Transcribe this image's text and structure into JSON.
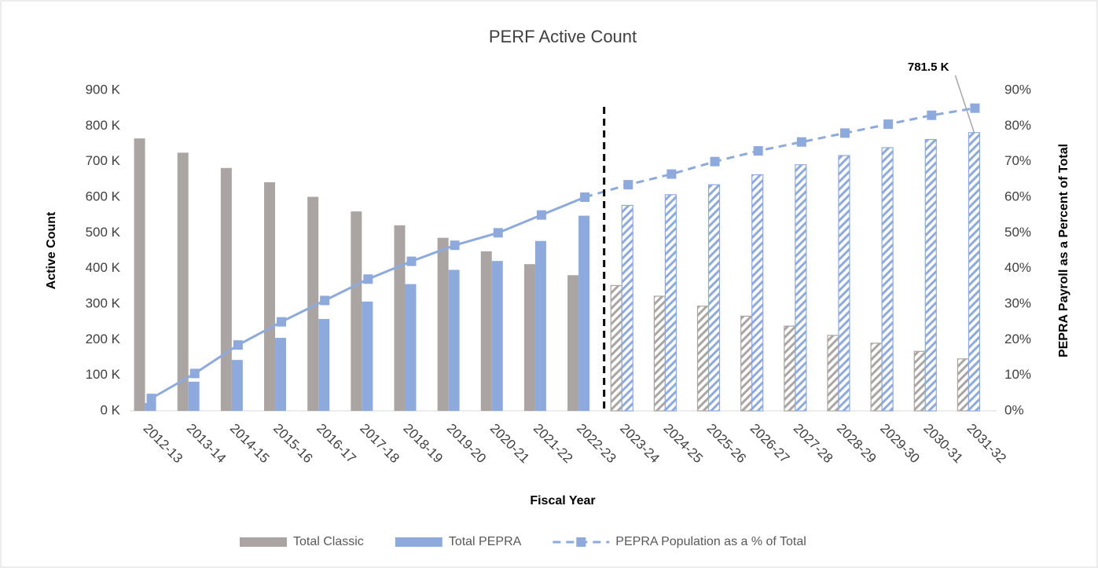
{
  "chart_data": {
    "type": "bar_line",
    "title": "PERF Active Count",
    "x_label": "Fiscal Year",
    "y_label": "Active Count",
    "y2_label": "PEPRA Payroll as a Percent of Total",
    "categories": [
      "2012-13",
      "2013-14",
      "2014-15",
      "2015-16",
      "2016-17",
      "2017-18",
      "2018-19",
      "2019-20",
      "2020-21",
      "2021-22",
      "2022-23",
      "2023-24",
      "2024-25",
      "2025-26",
      "2026-27",
      "2027-28",
      "2028-29",
      "2029-30",
      "2030-31",
      "2031-32"
    ],
    "projected_from": "2023-24",
    "series": [
      {
        "name": "Total Classic",
        "kind": "bar",
        "color": "#aaa5a3",
        "values": [
          765,
          725,
          682,
          642,
          601,
          560,
          521,
          486,
          448,
          412,
          381,
          352,
          322,
          294,
          266,
          238,
          212,
          190,
          167,
          146
        ]
      },
      {
        "name": "Total PEPRA",
        "kind": "bar",
        "color": "#8eaadc",
        "values": [
          22,
          82,
          143,
          205,
          258,
          307,
          356,
          396,
          421,
          477,
          548,
          577,
          607,
          635,
          663,
          691,
          717,
          739,
          762,
          781.5
        ],
        "value_labels": [
          null,
          null,
          null,
          null,
          null,
          null,
          null,
          null,
          null,
          null,
          null,
          null,
          null,
          null,
          null,
          null,
          null,
          null,
          null,
          "781.5 K"
        ]
      },
      {
        "name": "PEPRA Population as a % of Total",
        "kind": "line",
        "axis": "y2",
        "color": "#8eaadc",
        "values": [
          3.5,
          10.5,
          18.5,
          25,
          31,
          37,
          42,
          46.5,
          50,
          55,
          60,
          63.5,
          66.5,
          70,
          73,
          75.5,
          78,
          80.5,
          83,
          85
        ]
      }
    ],
    "ylim": [
      0,
      900
    ],
    "yticks": [
      {
        "value": 0,
        "label": "0 K"
      },
      {
        "value": 100,
        "label": "100 K"
      },
      {
        "value": 200,
        "label": "200 K"
      },
      {
        "value": 300,
        "label": "300 K"
      },
      {
        "value": 400,
        "label": "400 K"
      },
      {
        "value": 500,
        "label": "500 K"
      },
      {
        "value": 600,
        "label": "600 K"
      },
      {
        "value": 700,
        "label": "700 K"
      },
      {
        "value": 800,
        "label": "800 K"
      },
      {
        "value": 900,
        "label": "900 K"
      }
    ],
    "y2lim": [
      0,
      90
    ],
    "y2ticks": [
      {
        "value": 0,
        "label": "0%"
      },
      {
        "value": 10,
        "label": "10%"
      },
      {
        "value": 20,
        "label": "20%"
      },
      {
        "value": 30,
        "label": "30%"
      },
      {
        "value": 40,
        "label": "40%"
      },
      {
        "value": 50,
        "label": "50%"
      },
      {
        "value": 60,
        "label": "60%"
      },
      {
        "value": 70,
        "label": "70%"
      },
      {
        "value": 80,
        "label": "80%"
      },
      {
        "value": 90,
        "label": "90%"
      }
    ],
    "legend": "bottom"
  }
}
